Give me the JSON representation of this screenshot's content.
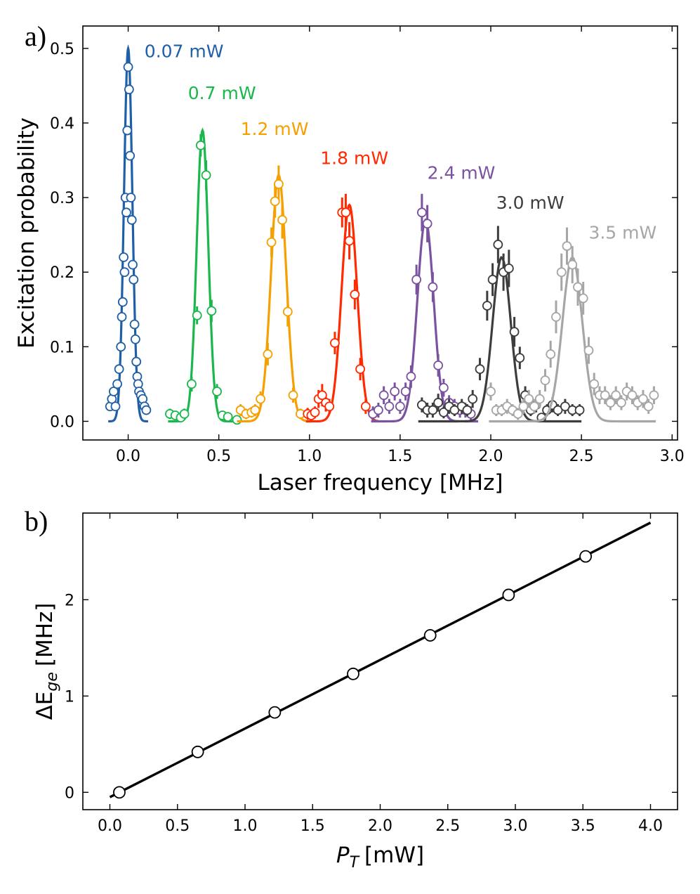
{
  "chart_data": [
    {
      "type": "scatter",
      "panel_label": "a)",
      "xlabel": "Laser frequency [MHz]",
      "ylabel": "Excitation probability",
      "xlim": [
        -0.25,
        3.03
      ],
      "ylim": [
        -0.025,
        0.53
      ],
      "x_ticks": [
        0.0,
        0.5,
        1.0,
        1.5,
        2.0,
        2.5,
        3.0
      ],
      "x_tick_labels": [
        "0.0",
        "0.5",
        "1.0",
        "1.5",
        "2.0",
        "2.5",
        "3.0"
      ],
      "y_ticks": [
        0.0,
        0.1,
        0.2,
        0.3,
        0.4,
        0.5
      ],
      "y_tick_labels": [
        "0.0",
        "0.1",
        "0.2",
        "0.3",
        "0.4",
        "0.5"
      ],
      "grid": false,
      "series": [
        {
          "name": "0.07 mW",
          "color": "#1f5fa8",
          "x_range": [
            -0.11,
            0.11
          ],
          "fit": {
            "center": 0.0,
            "amplitude": 0.5,
            "sigma": 0.023
          },
          "x": [
            -0.1,
            -0.09,
            -0.08,
            -0.07,
            -0.06,
            -0.05,
            -0.04,
            -0.035,
            -0.03,
            -0.025,
            -0.02,
            -0.015,
            -0.01,
            -0.005,
            0.0,
            0.005,
            0.01,
            0.015,
            0.02,
            0.025,
            0.03,
            0.035,
            0.04,
            0.045,
            0.05,
            0.055,
            0.06,
            0.07,
            0.08,
            0.09,
            0.1
          ],
          "y": [
            0.02,
            0.03,
            0.04,
            0.02,
            0.05,
            0.07,
            0.1,
            0.14,
            0.16,
            0.22,
            0.2,
            0.3,
            0.28,
            0.39,
            0.475,
            0.445,
            0.356,
            0.3,
            0.27,
            0.21,
            0.19,
            0.13,
            0.11,
            0.08,
            0.06,
            0.05,
            0.04,
            0.035,
            0.03,
            0.02,
            0.015
          ]
        },
        {
          "name": "0.7 mW",
          "color": "#1ab84c",
          "x_range": [
            0.22,
            0.6
          ],
          "fit": {
            "center": 0.41,
            "amplitude": 0.39,
            "sigma": 0.032
          },
          "x": [
            0.23,
            0.26,
            0.29,
            0.31,
            0.35,
            0.38,
            0.4,
            0.43,
            0.46,
            0.49,
            0.52,
            0.55,
            0.6
          ],
          "y": [
            0.01,
            0.008,
            0.005,
            0.01,
            0.05,
            0.142,
            0.37,
            0.33,
            0.148,
            0.04,
            0.008,
            0.006,
            0.002
          ],
          "err": [
            0.007,
            0.006,
            0.005,
            0.007,
            0.01,
            0.012,
            0.015,
            0.02,
            0.015,
            0.01,
            0.006,
            0.005,
            0.005
          ]
        },
        {
          "name": "1.2 mW",
          "color": "#f5a000",
          "x_range": [
            0.6,
            0.98
          ],
          "fit": {
            "center": 0.83,
            "amplitude": 0.33,
            "sigma": 0.042
          },
          "x": [
            0.62,
            0.65,
            0.68,
            0.7,
            0.73,
            0.77,
            0.79,
            0.81,
            0.83,
            0.85,
            0.88,
            0.91,
            0.95
          ],
          "y": [
            0.015,
            0.01,
            0.012,
            0.015,
            0.03,
            0.09,
            0.24,
            0.295,
            0.318,
            0.27,
            0.147,
            0.035,
            0.01
          ],
          "err": [
            0.008,
            0.007,
            0.007,
            0.008,
            0.01,
            0.015,
            0.02,
            0.022,
            0.025,
            0.025,
            0.02,
            0.01,
            0.007
          ]
        },
        {
          "name": "1.8 mW",
          "color": "#ff2a00",
          "x_range": [
            0.98,
            1.38
          ],
          "fit": {
            "center": 1.22,
            "amplitude": 0.29,
            "sigma": 0.043
          },
          "x": [
            0.99,
            1.01,
            1.03,
            1.05,
            1.07,
            1.09,
            1.11,
            1.14,
            1.18,
            1.2,
            1.22,
            1.25,
            1.28,
            1.31,
            1.35
          ],
          "y": [
            0.01,
            0.008,
            0.012,
            0.03,
            0.035,
            0.025,
            0.02,
            0.105,
            0.28,
            0.28,
            0.242,
            0.17,
            0.07,
            0.02,
            0.01
          ],
          "err": [
            0.008,
            0.007,
            0.008,
            0.012,
            0.015,
            0.012,
            0.01,
            0.015,
            0.02,
            0.025,
            0.025,
            0.02,
            0.015,
            0.01,
            0.008
          ]
        },
        {
          "name": "2.4 mW",
          "color": "#7a52a0",
          "x_range": [
            1.34,
            1.93
          ],
          "fit": {
            "center": 1.64,
            "amplitude": 0.27,
            "sigma": 0.045
          },
          "x": [
            1.35,
            1.38,
            1.41,
            1.44,
            1.47,
            1.5,
            1.53,
            1.56,
            1.59,
            1.62,
            1.65,
            1.68,
            1.71,
            1.74,
            1.77,
            1.8,
            1.83,
            1.86,
            1.89
          ],
          "y": [
            0.01,
            0.015,
            0.035,
            0.02,
            0.04,
            0.02,
            0.04,
            0.06,
            0.19,
            0.28,
            0.265,
            0.18,
            0.075,
            0.045,
            0.025,
            0.02,
            0.015,
            0.015,
            0.01
          ],
          "err": [
            0.01,
            0.01,
            0.012,
            0.01,
            0.012,
            0.01,
            0.012,
            0.015,
            0.02,
            0.025,
            0.025,
            0.02,
            0.015,
            0.012,
            0.01,
            0.01,
            0.01,
            0.01,
            0.01
          ]
        },
        {
          "name": "3.0 mW",
          "color": "#3d3d3d",
          "x_range": [
            1.6,
            2.5
          ],
          "fit": {
            "center": 2.06,
            "amplitude": 0.22,
            "sigma": 0.05
          },
          "x": [
            1.62,
            1.65,
            1.68,
            1.71,
            1.74,
            1.77,
            1.8,
            1.84,
            1.87,
            1.9,
            1.94,
            1.98,
            2.01,
            2.04,
            2.07,
            2.1,
            2.13,
            2.16,
            2.19,
            2.22,
            2.25,
            2.28,
            2.31,
            2.34,
            2.37,
            2.41,
            2.45,
            2.49
          ],
          "y": [
            0.022,
            0.015,
            0.015,
            0.025,
            0.012,
            0.02,
            0.015,
            0.02,
            0.015,
            0.03,
            0.07,
            0.155,
            0.19,
            0.237,
            0.2,
            0.205,
            0.12,
            0.085,
            0.035,
            0.015,
            0.022,
            0.005,
            0.015,
            0.022,
            0.015,
            0.02,
            0.015,
            0.015
          ],
          "err": [
            0.01,
            0.01,
            0.01,
            0.012,
            0.008,
            0.01,
            0.008,
            0.01,
            0.008,
            0.012,
            0.015,
            0.02,
            0.022,
            0.025,
            0.025,
            0.025,
            0.02,
            0.015,
            0.012,
            0.008,
            0.01,
            0.006,
            0.008,
            0.01,
            0.008,
            0.01,
            0.008,
            0.008
          ]
        },
        {
          "name": "3.5 mW",
          "color": "#a6a6a6",
          "x_range": [
            1.99,
            2.91
          ],
          "fit": {
            "center": 2.45,
            "amplitude": 0.22,
            "sigma": 0.055
          },
          "x": [
            2.0,
            2.03,
            2.06,
            2.09,
            2.12,
            2.15,
            2.18,
            2.21,
            2.24,
            2.27,
            2.3,
            2.33,
            2.36,
            2.39,
            2.42,
            2.45,
            2.48,
            2.51,
            2.54,
            2.57,
            2.6,
            2.63,
            2.66,
            2.69,
            2.72,
            2.75,
            2.78,
            2.81,
            2.84,
            2.87,
            2.9
          ],
          "y": [
            0.04,
            0.015,
            0.015,
            0.02,
            0.015,
            0.01,
            0.02,
            0.03,
            0.02,
            0.03,
            0.055,
            0.09,
            0.14,
            0.2,
            0.235,
            0.21,
            0.18,
            0.165,
            0.095,
            0.05,
            0.035,
            0.035,
            0.025,
            0.035,
            0.025,
            0.04,
            0.035,
            0.025,
            0.03,
            0.02,
            0.035
          ],
          "err": [
            0.012,
            0.008,
            0.008,
            0.01,
            0.008,
            0.008,
            0.01,
            0.012,
            0.01,
            0.012,
            0.015,
            0.018,
            0.022,
            0.025,
            0.025,
            0.025,
            0.025,
            0.022,
            0.018,
            0.015,
            0.012,
            0.012,
            0.01,
            0.012,
            0.01,
            0.012,
            0.012,
            0.01,
            0.012,
            0.01,
            0.012
          ]
        }
      ]
    },
    {
      "type": "scatter",
      "panel_label": "b)",
      "xlabel_main": "P",
      "xlabel_sub": "T",
      "xlabel_unit": "[mW]",
      "ylabel_main": "ΔE",
      "ylabel_sub": "ge",
      "ylabel_unit": "[MHz]",
      "xlim": [
        -0.2,
        4.2
      ],
      "ylim": [
        -0.18,
        2.9
      ],
      "x_ticks": [
        0.0,
        0.5,
        1.0,
        1.5,
        2.0,
        2.5,
        3.0,
        3.5,
        4.0
      ],
      "x_tick_labels": [
        "0.0",
        "0.5",
        "1.0",
        "1.5",
        "2.0",
        "2.5",
        "3.0",
        "3.5",
        "4.0"
      ],
      "y_ticks": [
        0,
        1,
        2
      ],
      "y_tick_labels": [
        "0",
        "1",
        "2"
      ],
      "grid": false,
      "points": {
        "x": [
          0.07,
          0.65,
          1.22,
          1.8,
          2.37,
          2.95,
          3.52
        ],
        "y": [
          0.0,
          0.42,
          0.83,
          1.23,
          1.63,
          2.05,
          2.45
        ]
      },
      "fit_line": {
        "x": [
          0.0,
          4.0
        ],
        "y": [
          -0.05,
          2.8
        ]
      },
      "color": "#000000"
    }
  ]
}
